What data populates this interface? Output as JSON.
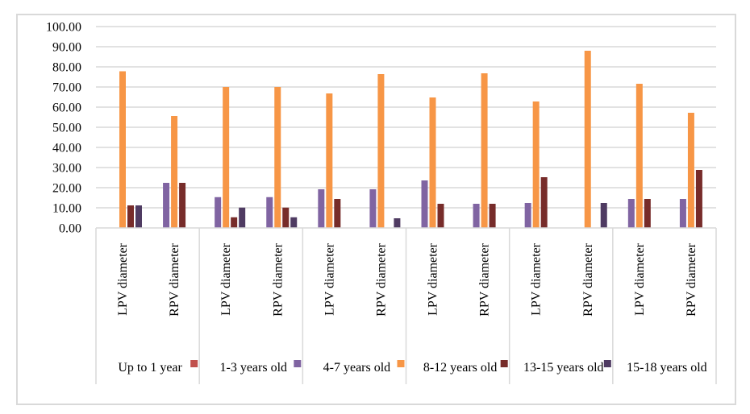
{
  "chart_data": {
    "type": "bar",
    "title": "",
    "xlabel": "",
    "ylabel": "",
    "ylim": [
      0,
      100
    ],
    "yticks": [
      "0.00",
      "10.00",
      "20.00",
      "30.00",
      "40.00",
      "50.00",
      "60.00",
      "70.00",
      "80.00",
      "90.00",
      "100.00"
    ],
    "grid": true,
    "legend_position": "bottom",
    "groups": [
      "Up to 1 year",
      "1-3 years old",
      "4-7 years old",
      "8-12 years old",
      "13-15 years old",
      "15-18 years old"
    ],
    "categories": [
      "LPV diameter",
      "RPV diameter"
    ],
    "series": [
      {
        "name": "Up to 1 year",
        "color": "#c0504d",
        "values": [
          0,
          0,
          0,
          0,
          0,
          0,
          0,
          0,
          0,
          0,
          0,
          0
        ]
      },
      {
        "name": "1-3 years old",
        "color": "#8064a2",
        "values": [
          0,
          22.4,
          15.3,
          15.3,
          19.2,
          19.2,
          23.6,
          12.0,
          12.4,
          0,
          14.4,
          14.4
        ]
      },
      {
        "name": "4-7 years old",
        "color": "#f79646",
        "values": [
          77.8,
          55.6,
          70.0,
          70.0,
          66.8,
          76.4,
          64.8,
          76.8,
          62.8,
          88.0,
          71.6,
          57.2
        ]
      },
      {
        "name": "8-12 years old",
        "color": "#772c2a",
        "values": [
          11.2,
          22.4,
          5.3,
          10.1,
          14.4,
          0,
          12.0,
          12.0,
          25.2,
          0,
          14.4,
          28.8
        ]
      },
      {
        "name": "13-15 years old",
        "color": "#4f3b62",
        "values": [
          11.2,
          0,
          10.1,
          5.3,
          0,
          4.8,
          0,
          0,
          0,
          12.4,
          0,
          0
        ]
      }
    ]
  }
}
